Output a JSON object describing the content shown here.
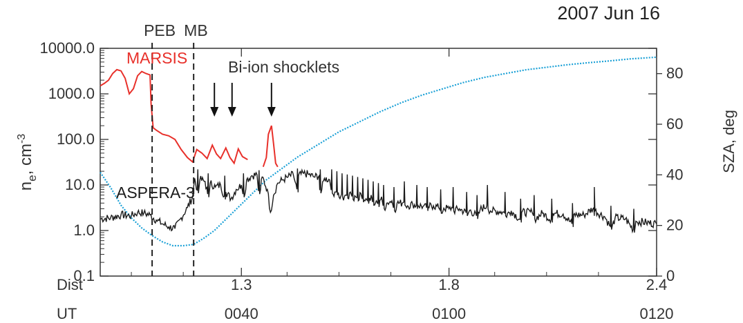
{
  "chart_data": {
    "type": "line",
    "date": "2007 Jun 16",
    "y_left": {
      "label_main": "n",
      "label_sub": "e",
      "label_unit": ", cm",
      "label_exp": "-3",
      "scale": "log",
      "range": [
        0.1,
        10000
      ],
      "ticks": [
        "10000.0",
        "1000.0",
        "100.0",
        "10.0",
        "1.0",
        "0.1"
      ]
    },
    "y_right": {
      "label": "SZA, deg",
      "range": [
        0,
        90
      ],
      "ticks": [
        "80",
        "60",
        "40",
        "20",
        "0"
      ]
    },
    "x_rows": [
      {
        "label": "Dist",
        "ticks": [
          {
            "at": 40.6,
            "text": "1.3"
          },
          {
            "at": 60.6,
            "text": "1.8"
          },
          {
            "at": 80.6,
            "text": "2.4"
          }
        ]
      },
      {
        "label": "UT",
        "ticks": [
          {
            "at": 40.6,
            "text": "0040"
          },
          {
            "at": 60.6,
            "text": "0100"
          },
          {
            "at": 80.6,
            "text": "0120"
          }
        ]
      }
    ],
    "x_range": [
      27.0,
      80.6
    ],
    "boundaries": [
      {
        "label": "PEB",
        "x": 32.0
      },
      {
        "label": "MB",
        "x": 36.0
      }
    ],
    "annotation": {
      "text": "Bi-ion shocklets",
      "arrows_at": [
        38.0,
        39.7,
        43.5
      ]
    },
    "series": [
      {
        "name": "MARSIS",
        "color": "#e8302a",
        "segments": [
          [
            [
              27.0,
              1500
            ],
            [
              27.4,
              1700
            ],
            [
              27.8,
              2000
            ],
            [
              28.2,
              2800
            ],
            [
              28.6,
              3400
            ],
            [
              29.0,
              3200
            ],
            [
              29.4,
              2200
            ],
            [
              29.8,
              1000
            ],
            [
              30.2,
              1300
            ],
            [
              30.6,
              2500
            ],
            [
              31.0,
              3100
            ],
            [
              31.4,
              2800
            ],
            [
              31.8,
              2600
            ],
            [
              31.9,
              600
            ],
            [
              32.1,
              180
            ],
            [
              32.4,
              160
            ],
            [
              33.0,
              130
            ],
            [
              33.6,
              120
            ],
            [
              34.2,
              100
            ],
            [
              34.8,
              60
            ],
            [
              35.4,
              40
            ],
            [
              35.9,
              32
            ],
            [
              36.3,
              60
            ],
            [
              36.8,
              50
            ],
            [
              37.3,
              38
            ],
            [
              37.8,
              75
            ],
            [
              38.2,
              48
            ],
            [
              38.6,
              38
            ],
            [
              39.1,
              65
            ],
            [
              39.5,
              40
            ],
            [
              39.9,
              30
            ],
            [
              40.3,
              62
            ],
            [
              40.7,
              42
            ],
            [
              41.2,
              36
            ]
          ],
          [
            [
              42.7,
              25
            ],
            [
              43.0,
              40
            ],
            [
              43.2,
              130
            ],
            [
              43.5,
              200
            ],
            [
              43.7,
              80
            ],
            [
              43.9,
              30
            ],
            [
              44.1,
              25
            ]
          ]
        ]
      },
      {
        "name": "ASPERA-3",
        "color": "#1a1a1a",
        "points": [
          [
            27.0,
            1.8
          ],
          [
            28.0,
            1.9
          ],
          [
            29.0,
            2.2
          ],
          [
            30.0,
            2.1
          ],
          [
            30.6,
            2.5
          ],
          [
            31.2,
            2.4
          ],
          [
            31.8,
            2.2
          ],
          [
            32.4,
            1.7
          ],
          [
            33.0,
            1.4
          ],
          [
            33.6,
            1.2
          ],
          [
            34.2,
            1.1
          ],
          [
            34.8,
            1.9
          ],
          [
            35.4,
            3.2
          ],
          [
            35.9,
            5.5
          ],
          [
            36.1,
            14
          ],
          [
            36.6,
            13
          ],
          [
            37.1,
            12
          ],
          [
            37.6,
            11
          ],
          [
            38.1,
            9
          ],
          [
            38.6,
            10
          ],
          [
            39.1,
            7
          ],
          [
            39.6,
            5
          ],
          [
            40.1,
            8
          ],
          [
            40.6,
            10
          ],
          [
            41.1,
            13
          ],
          [
            41.6,
            16
          ],
          [
            42.1,
            17
          ],
          [
            42.6,
            15
          ],
          [
            43.1,
            8
          ],
          [
            43.4,
            2.5
          ],
          [
            43.7,
            6
          ],
          [
            44.1,
            11
          ],
          [
            44.6,
            13
          ],
          [
            45.1,
            15
          ],
          [
            45.6,
            17
          ],
          [
            46.1,
            16
          ],
          [
            46.6,
            18
          ],
          [
            47.1,
            17
          ],
          [
            47.6,
            15
          ],
          [
            48.1,
            16
          ],
          [
            48.6,
            14
          ],
          [
            49.1,
            13
          ],
          [
            49.6,
            7
          ],
          [
            50.1,
            5
          ],
          [
            50.6,
            6
          ],
          [
            51.1,
            7
          ],
          [
            51.6,
            5.5
          ],
          [
            52.1,
            6.5
          ],
          [
            52.6,
            5
          ],
          [
            53.1,
            6
          ],
          [
            53.6,
            4.5
          ],
          [
            54.1,
            5.5
          ],
          [
            54.6,
            4
          ],
          [
            55.1,
            4.5
          ],
          [
            55.6,
            4
          ],
          [
            56.1,
            4
          ],
          [
            56.6,
            3.5
          ],
          [
            57.1,
            3.8
          ],
          [
            57.6,
            3.6
          ],
          [
            58.1,
            3.4
          ],
          [
            58.6,
            3.3
          ],
          [
            59.1,
            3.5
          ],
          [
            59.6,
            3.2
          ],
          [
            60.1,
            3.1
          ],
          [
            60.6,
            3.0
          ],
          [
            61.6,
            3.0
          ],
          [
            62.6,
            2.8
          ],
          [
            63.6,
            2.9
          ],
          [
            64.6,
            2.7
          ],
          [
            65.6,
            2.6
          ],
          [
            66.6,
            2.7
          ],
          [
            67.6,
            2.5
          ],
          [
            68.6,
            2.5
          ],
          [
            69.6,
            2.4
          ],
          [
            70.6,
            2.4
          ],
          [
            71.6,
            2.3
          ],
          [
            72.6,
            2.2
          ],
          [
            73.6,
            2.2
          ],
          [
            74.6,
            2.1
          ],
          [
            75.6,
            2.0
          ],
          [
            76.6,
            1.9
          ],
          [
            77.6,
            1.8
          ],
          [
            78.6,
            1.6
          ],
          [
            79.6,
            1.5
          ],
          [
            80.6,
            1.4
          ]
        ],
        "spikes": [
          [
            36.4,
            22
          ],
          [
            37.4,
            18
          ],
          [
            39.0,
            16
          ],
          [
            40.8,
            18
          ],
          [
            42.3,
            21
          ],
          [
            46.0,
            23
          ],
          [
            48.2,
            22
          ],
          [
            49.3,
            22
          ],
          [
            49.8,
            20
          ],
          [
            50.3,
            18
          ],
          [
            50.8,
            17
          ],
          [
            51.3,
            16
          ],
          [
            51.8,
            15
          ],
          [
            52.3,
            14
          ],
          [
            52.8,
            13
          ],
          [
            53.3,
            12
          ],
          [
            53.8,
            11
          ],
          [
            54.3,
            10
          ],
          [
            55.3,
            9
          ],
          [
            56.3,
            12
          ],
          [
            57.5,
            10
          ],
          [
            58.5,
            9
          ],
          [
            59.8,
            8
          ],
          [
            61.0,
            9
          ],
          [
            62.3,
            7
          ],
          [
            63.3,
            6
          ],
          [
            64.3,
            10
          ],
          [
            66.0,
            7
          ],
          [
            67.5,
            5
          ],
          [
            68.8,
            6
          ],
          [
            70.5,
            5
          ],
          [
            72.5,
            4
          ],
          [
            74.6,
            9
          ],
          [
            76.2,
            3.5
          ],
          [
            78.4,
            3
          ]
        ]
      },
      {
        "name": "SZA",
        "color": "#1aa0d6",
        "axis": "right",
        "points": [
          [
            27.0,
            41
          ],
          [
            28.0,
            35
          ],
          [
            29.0,
            28
          ],
          [
            30.0,
            23
          ],
          [
            31.0,
            19
          ],
          [
            32.0,
            16
          ],
          [
            33.0,
            13.5
          ],
          [
            34.0,
            12
          ],
          [
            35.0,
            12
          ],
          [
            36.0,
            12.5
          ],
          [
            37.0,
            15
          ],
          [
            38.0,
            18
          ],
          [
            39.0,
            22
          ],
          [
            40.0,
            26
          ],
          [
            41.0,
            30
          ],
          [
            42.0,
            34
          ],
          [
            43.0,
            38
          ],
          [
            44.0,
            41
          ],
          [
            45.0,
            44
          ],
          [
            46.0,
            47
          ],
          [
            48.0,
            52
          ],
          [
            50.0,
            57
          ],
          [
            52.0,
            61
          ],
          [
            54.0,
            65
          ],
          [
            56.0,
            68.5
          ],
          [
            58.0,
            71.5
          ],
          [
            60.0,
            74
          ],
          [
            62.0,
            76.5
          ],
          [
            64.0,
            78.5
          ],
          [
            66.0,
            80
          ],
          [
            68.0,
            81.5
          ],
          [
            70.0,
            82.5
          ],
          [
            72.0,
            83.5
          ],
          [
            74.0,
            84.3
          ],
          [
            76.0,
            85
          ],
          [
            78.0,
            85.8
          ],
          [
            80.6,
            86.5
          ]
        ]
      }
    ],
    "labels": [
      {
        "text": "MARSIS",
        "color": "#e8302a"
      },
      {
        "text": "ASPERA-3",
        "color": "#1a1a1a"
      }
    ]
  }
}
